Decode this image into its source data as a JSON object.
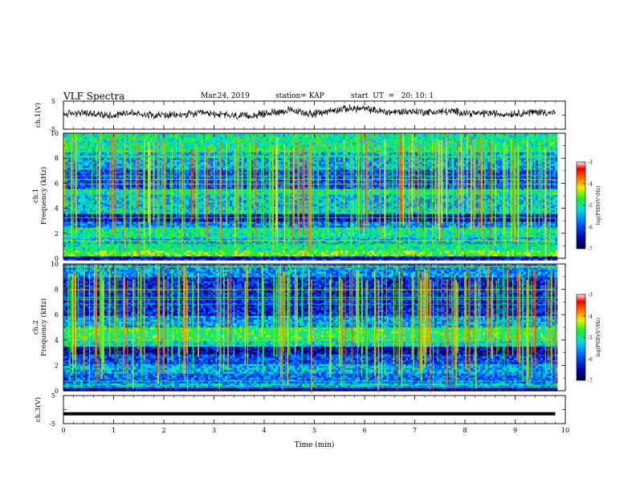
{
  "header": {
    "title": "VLF Spectra",
    "date": "Mar.24, 2019",
    "station": "station= KAP",
    "start": "start  UT  =   20: 10: 1"
  },
  "chart_data": [
    {
      "type": "line",
      "panel": "ch1-waveform",
      "ylabel": "ch.1(V)",
      "ylim": [
        -5,
        5
      ],
      "y_ticks": [
        "5",
        "-5"
      ],
      "xlim": [
        0,
        10
      ],
      "x_units": "min",
      "series": [
        {
          "x_step": 0.25,
          "x_start": 0,
          "values": [
            0.3,
            0.8,
            0.6,
            0.1,
            0.0,
            0.9,
            0.4,
            0.2,
            0.0,
            -0.1,
            0.3,
            0.6,
            0.4,
            0.0,
            -0.4,
            -0.2,
            0.5,
            1.2,
            1.6,
            1.0,
            0.4,
            1.3,
            2.0,
            2.4,
            2.2,
            1.6,
            1.0,
            1.2,
            1.4,
            1.0,
            1.2,
            1.3,
            0.9,
            0.5,
            0.7,
            0.3,
            0.6,
            0.9,
            1.1,
            0.8
          ]
        }
      ],
      "color": "#000000"
    },
    {
      "type": "heatmap",
      "panel": "ch1-spectrogram",
      "ylabel": "ch.1\nFrequency  (kHz)",
      "ylim": [
        0,
        10
      ],
      "y_ticks": [
        "0",
        "2",
        "4",
        "6",
        "8",
        "10"
      ],
      "xlim": [
        0,
        10
      ],
      "colorbar": {
        "label": "log(PSD)(V²/Hz)",
        "range": [
          -7,
          -3
        ],
        "ticks": [
          "-3",
          "-4",
          "-5",
          "-6",
          "-7"
        ]
      },
      "bands": [
        {
          "from": 0.0,
          "to": 0.3,
          "level": -6.2
        },
        {
          "from": 0.3,
          "to": 0.7,
          "level": -4.6
        },
        {
          "from": 0.7,
          "to": 1.1,
          "level": -5.0
        },
        {
          "from": 1.1,
          "to": 1.7,
          "level": -5.4
        },
        {
          "from": 1.7,
          "to": 2.5,
          "level": -5.0
        },
        {
          "from": 2.5,
          "to": 3.0,
          "level": -5.7
        },
        {
          "from": 3.0,
          "to": 3.6,
          "level": -6.4
        },
        {
          "from": 3.6,
          "to": 4.1,
          "level": -5.2
        },
        {
          "from": 4.1,
          "to": 5.1,
          "level": -5.4
        },
        {
          "from": 5.1,
          "to": 5.6,
          "level": -5.0
        },
        {
          "from": 5.6,
          "to": 7.2,
          "level": -6.0
        },
        {
          "from": 7.2,
          "to": 8.6,
          "level": -5.5
        },
        {
          "from": 8.6,
          "to": 10.0,
          "level": -5.0
        }
      ]
    },
    {
      "type": "heatmap",
      "panel": "ch2-spectrogram",
      "ylabel": "ch.2\nFrequency  (kHz)",
      "ylim": [
        0,
        10
      ],
      "y_ticks": [
        "0",
        "2",
        "4",
        "6",
        "8",
        "10"
      ],
      "xlim": [
        0,
        10
      ],
      "colorbar": {
        "label": "log(PSD)(V²/Hz)",
        "range": [
          -7,
          -3
        ],
        "ticks": [
          "-3",
          "-4",
          "-5",
          "-6",
          "-7"
        ]
      },
      "bands": [
        {
          "from": 0.0,
          "to": 0.3,
          "level": -6.5
        },
        {
          "from": 0.3,
          "to": 0.7,
          "level": -5.3
        },
        {
          "from": 0.7,
          "to": 1.4,
          "level": -5.8
        },
        {
          "from": 1.4,
          "to": 2.2,
          "level": -5.5
        },
        {
          "from": 2.2,
          "to": 3.0,
          "level": -6.0
        },
        {
          "from": 3.0,
          "to": 3.5,
          "level": -6.5
        },
        {
          "from": 3.5,
          "to": 4.2,
          "level": -5.2
        },
        {
          "from": 4.2,
          "to": 5.0,
          "level": -4.8
        },
        {
          "from": 5.0,
          "to": 6.0,
          "level": -5.6
        },
        {
          "from": 6.0,
          "to": 9.0,
          "level": -6.2
        },
        {
          "from": 9.0,
          "to": 10.0,
          "level": -5.6
        }
      ]
    },
    {
      "type": "line",
      "panel": "ch3-waveform",
      "ylabel": "ch.3(V)",
      "ylim": [
        -5,
        5
      ],
      "y_ticks": [
        "5",
        "-5"
      ],
      "xlim": [
        0,
        10
      ],
      "series": [
        {
          "x": [
            0,
            9.8
          ],
          "values": [
            -1.5,
            -1.5
          ]
        }
      ],
      "color": "#000000"
    }
  ],
  "xaxis": {
    "label": "Time  (min)",
    "ticks": [
      "0",
      "1",
      "2",
      "3",
      "4",
      "5",
      "6",
      "7",
      "8",
      "9",
      "10"
    ]
  }
}
